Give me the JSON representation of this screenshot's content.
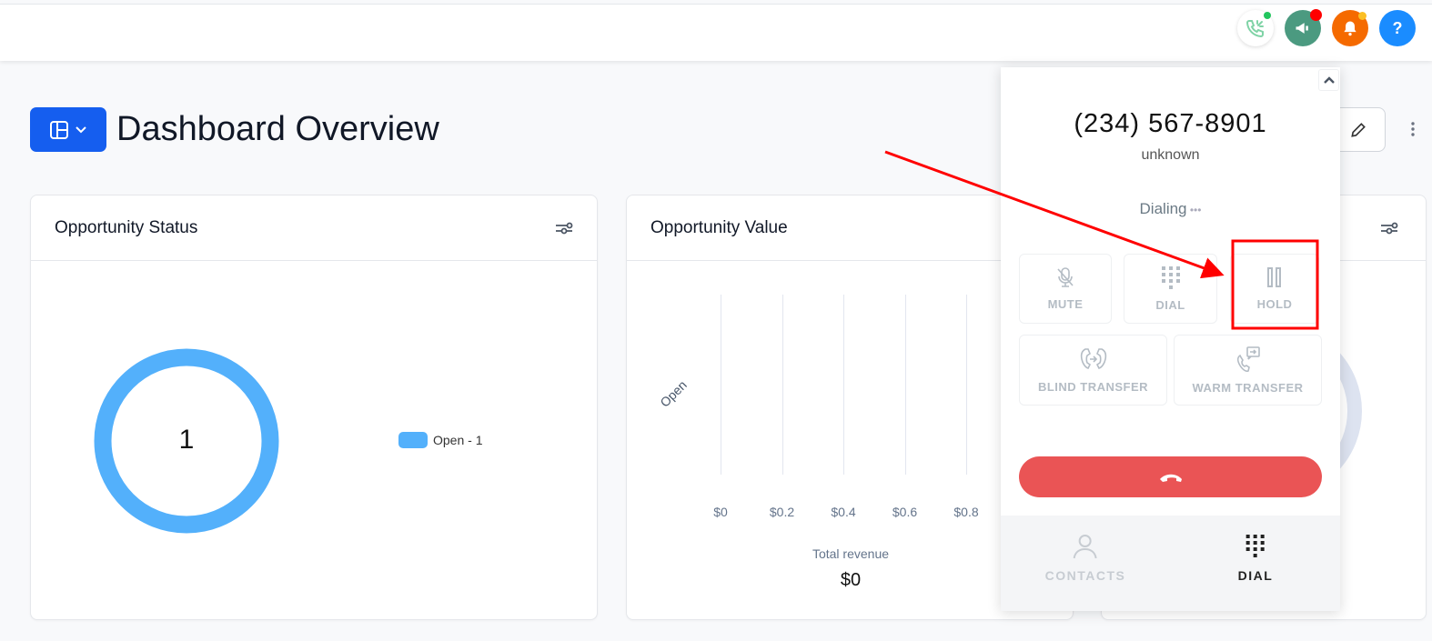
{
  "header": {
    "icons": [
      {
        "name": "phone-call-icon",
        "bg": "#ffffff",
        "badge": "#22c55e"
      },
      {
        "name": "megaphone-icon",
        "bg": "#4b9a80",
        "badge": "#ff0000"
      },
      {
        "name": "bell-icon",
        "bg": "#f56a00",
        "badge": "#fbbf24"
      },
      {
        "name": "help-icon",
        "bg": "#1a8cff",
        "label": "?"
      }
    ]
  },
  "page": {
    "title": "Dashboard Overview"
  },
  "cards": {
    "status": {
      "title": "Opportunity Status",
      "center_value": "1",
      "legend": "Open - 1"
    },
    "value": {
      "title": "Opportunity Value",
      "total_label": "Total revenue",
      "total_value": "$0"
    }
  },
  "chart_data": [
    {
      "type": "pie",
      "title": "Opportunity Status",
      "categories": [
        "Open"
      ],
      "values": [
        1
      ],
      "colors": [
        "#53b0fb"
      ],
      "legend": "right"
    },
    {
      "type": "bar",
      "orientation": "horizontal",
      "title": "Opportunity Value",
      "categories": [
        "Open"
      ],
      "values": [
        0
      ],
      "x_ticks": [
        "$0",
        "$0.2",
        "$0.4",
        "$0.6",
        "$0.8"
      ],
      "xlim": [
        0,
        0.8
      ],
      "grid": true,
      "xlabel": "Total revenue"
    }
  ],
  "dialer": {
    "phone": "(234) 567-8901",
    "name": "unknown",
    "status": "Dialing",
    "buttons": {
      "mute": "MUTE",
      "dial": "DIAL",
      "hold": "HOLD",
      "blind": "BLIND TRANSFER",
      "warm": "WARM TRANSFER"
    },
    "tabs": {
      "contacts": "CONTACTS",
      "dial": "DIAL"
    },
    "hangup_color": "#ea5455"
  },
  "annotation": {
    "color": "#ff0000"
  }
}
